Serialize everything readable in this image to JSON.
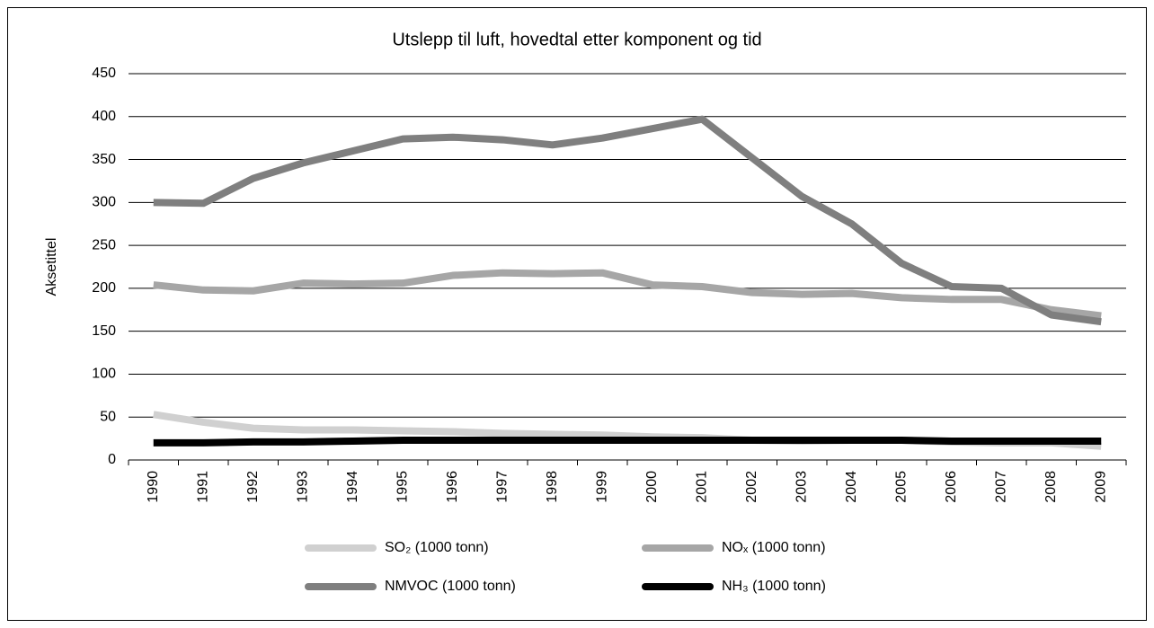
{
  "chart_data": {
    "type": "line",
    "title": "Utslepp til luft, hovedtal etter komponent og tid",
    "y_label": "Aksetittel",
    "categories": [
      "1990",
      "1991",
      "1992",
      "1993",
      "1994",
      "1995",
      "1996",
      "1997",
      "1998",
      "1999",
      "2000",
      "2001",
      "2002",
      "2003",
      "2004",
      "2005",
      "2006",
      "2007",
      "2008",
      "2009"
    ],
    "series": [
      {
        "name": "SO₂ (1000 tonn)",
        "color": "#d0d0d0",
        "values": [
          53,
          44,
          37,
          35,
          35,
          34,
          33,
          31,
          30,
          29,
          27,
          26,
          23,
          22,
          23,
          23,
          21,
          20,
          20,
          16
        ]
      },
      {
        "name": "NOₓ (1000 tonn)",
        "color": "#a6a6a6",
        "values": [
          204,
          198,
          197,
          206,
          205,
          206,
          215,
          218,
          217,
          218,
          204,
          202,
          195,
          193,
          194,
          189,
          187,
          187,
          175,
          168
        ]
      },
      {
        "name": "NMVOC (1000 tonn)",
        "color": "#7f7f7f",
        "values": [
          300,
          299,
          328,
          346,
          360,
          374,
          376,
          373,
          367,
          375,
          386,
          397,
          352,
          307,
          275,
          229,
          202,
          200,
          169,
          161
        ]
      },
      {
        "name": "NH₃ (1000 tonn)",
        "color": "#000000",
        "values": [
          20,
          20,
          21,
          21,
          22,
          23,
          23,
          23,
          23,
          23,
          23,
          23,
          23,
          23,
          23,
          23,
          22,
          22,
          22,
          22
        ]
      }
    ],
    "ylim": [
      0,
      450
    ],
    "yticks": [
      0,
      50,
      100,
      150,
      200,
      250,
      300,
      350,
      400,
      450
    ],
    "grid": true
  }
}
